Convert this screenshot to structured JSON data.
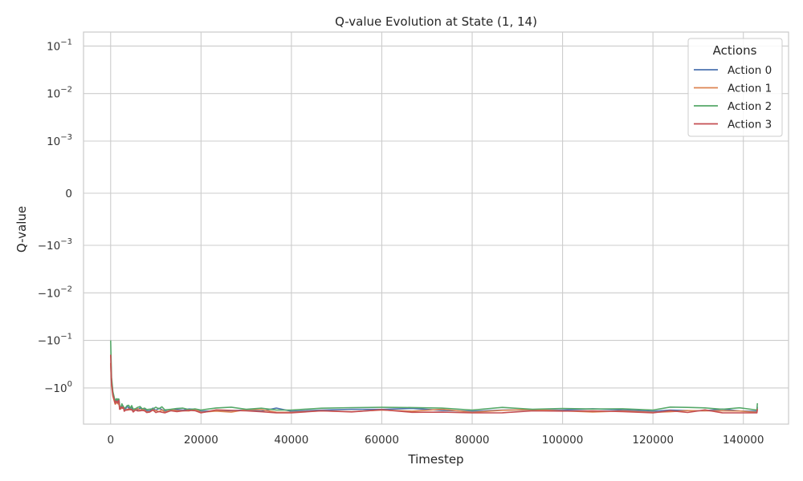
{
  "chart_data": {
    "type": "line",
    "title": "Q-value Evolution at State (1, 14)",
    "xlabel": "Timestep",
    "ylabel": "Q-value",
    "xlim": [
      -6000,
      150000
    ],
    "x_ticks": [
      0,
      20000,
      40000,
      60000,
      80000,
      100000,
      120000,
      140000
    ],
    "x_tick_labels": [
      "0",
      "20000",
      "40000",
      "60000",
      "80000",
      "100000",
      "120000",
      "140000"
    ],
    "y_scale": "symlog",
    "y_ticks": [
      0.1,
      0.01,
      0.001,
      0,
      -0.001,
      -0.01,
      -0.1,
      -1
    ],
    "y_tick_labels": [
      {
        "base": "10",
        "exp": "−1",
        "neg": false
      },
      {
        "base": "10",
        "exp": "−2",
        "neg": false
      },
      {
        "base": "10",
        "exp": "−3",
        "neg": false
      },
      {
        "base": "0",
        "exp": "",
        "neg": false
      },
      {
        "base": "10",
        "exp": "−3",
        "neg": true
      },
      {
        "base": "10",
        "exp": "−2",
        "neg": true
      },
      {
        "base": "10",
        "exp": "−1",
        "neg": true
      },
      {
        "base": "10",
        "exp": "0",
        "neg": true
      }
    ],
    "grid": true,
    "legend": {
      "title": "Actions",
      "placement": "top-right"
    },
    "series": [
      {
        "name": "Action 0",
        "color": "#4c72b0",
        "x": [
          0,
          200,
          500,
          1000,
          2000,
          3000,
          5000,
          8000,
          12000,
          20000,
          40000,
          80000,
          120000,
          143000,
          143100
        ],
        "y": [
          -0.3,
          -0.8,
          -1.3,
          -2.0,
          -2.6,
          -2.8,
          -2.95,
          -3.05,
          -3.1,
          -3.1,
          -3.1,
          -3.1,
          -3.1,
          -3.1,
          -2.5
        ]
      },
      {
        "name": "Action 1",
        "color": "#dd8452",
        "x": [
          0,
          200,
          500,
          1000,
          2000,
          3000,
          5000,
          8000,
          12000,
          20000,
          40000,
          80000,
          120000,
          143000,
          143100
        ],
        "y": [
          -0.3,
          -0.9,
          -1.5,
          -2.2,
          -2.8,
          -3.0,
          -3.1,
          -3.2,
          -3.25,
          -3.25,
          -3.25,
          -3.25,
          -3.25,
          -3.25,
          -2.7
        ]
      },
      {
        "name": "Action 2",
        "color": "#55a868",
        "x": [
          0,
          200,
          500,
          1000,
          2000,
          3000,
          5000,
          8000,
          12000,
          20000,
          40000,
          80000,
          120000,
          143000,
          143100
        ],
        "y": [
          -0.1,
          -0.6,
          -1.2,
          -1.9,
          -2.5,
          -2.7,
          -2.8,
          -2.85,
          -2.9,
          -2.92,
          -2.92,
          -2.92,
          -2.92,
          -2.92,
          -2.1
        ]
      },
      {
        "name": "Action 3",
        "color": "#c44e52",
        "x": [
          0,
          200,
          500,
          1000,
          2000,
          3000,
          5000,
          8000,
          12000,
          20000,
          40000,
          80000,
          120000,
          143000,
          143100
        ],
        "y": [
          -0.2,
          -0.8,
          -1.4,
          -2.1,
          -2.8,
          -3.1,
          -3.2,
          -3.3,
          -3.35,
          -3.35,
          -3.35,
          -3.35,
          -3.35,
          -3.35,
          -2.8
        ]
      }
    ]
  }
}
